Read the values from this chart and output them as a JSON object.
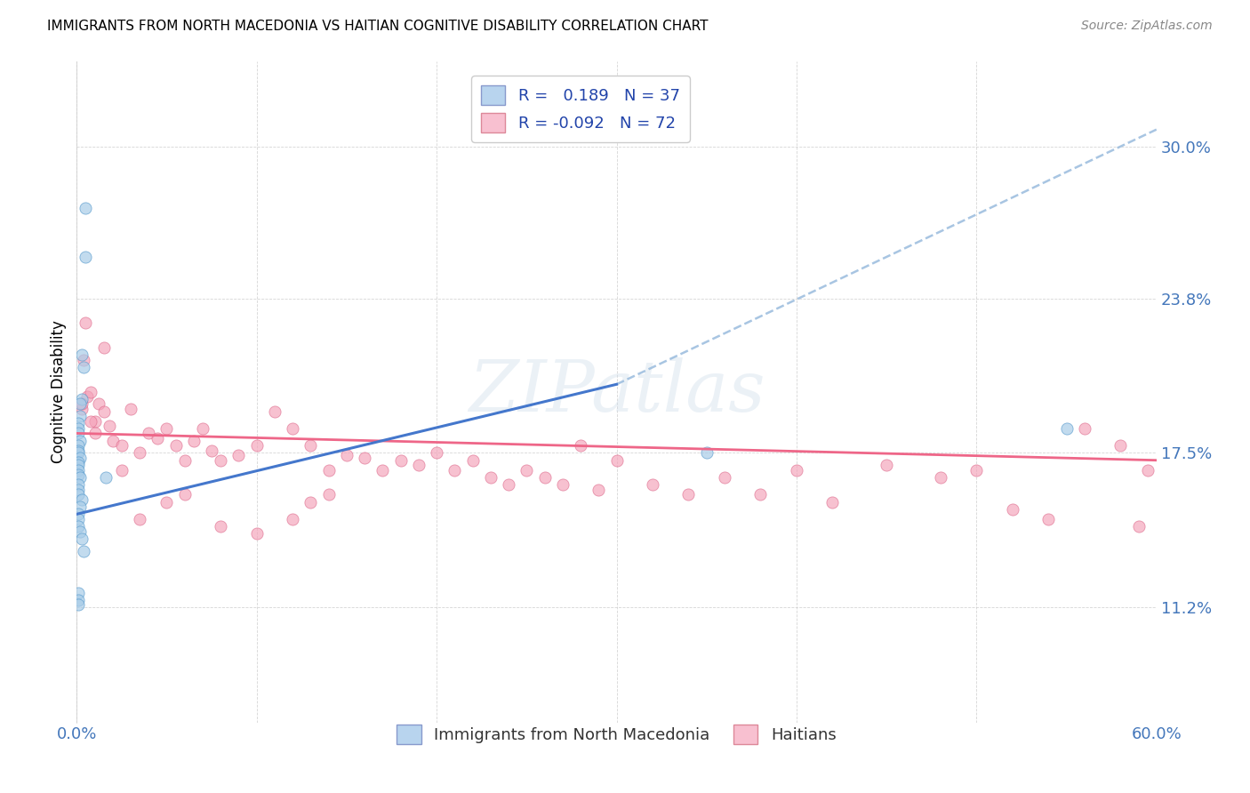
{
  "title": "IMMIGRANTS FROM NORTH MACEDONIA VS HAITIAN COGNITIVE DISABILITY CORRELATION CHART",
  "source": "Source: ZipAtlas.com",
  "ylabel": "Cognitive Disability",
  "xlim": [
    0.0,
    0.6
  ],
  "ylim": [
    0.065,
    0.335
  ],
  "yticks": [
    0.112,
    0.175,
    0.238,
    0.3
  ],
  "ytick_labels": [
    "11.2%",
    "17.5%",
    "23.8%",
    "30.0%"
  ],
  "series1_label": "Immigrants from North Macedonia",
  "series2_label": "Haitians",
  "series1_color": "#a8cce8",
  "series2_color": "#f4a0b8",
  "series1_edgecolor": "#5599cc",
  "series2_edgecolor": "#dd6688",
  "trend1_color": "#4477cc",
  "trend2_color": "#ee6688",
  "trend1_dash_color": "#99bbdd",
  "watermark": "ZIPatlas",
  "background_color": "#ffffff",
  "title_fontsize": 11,
  "axis_label_color": "#4477bb",
  "legend_label_color": "#2244aa",
  "series1_R": 0.189,
  "series1_N": 37,
  "series2_R": -0.092,
  "series2_N": 72,
  "trend1_start_x": 0.0,
  "trend1_start_y": 0.15,
  "trend1_solid_end_x": 0.3,
  "trend1_solid_end_y": 0.203,
  "trend1_dash_end_x": 0.6,
  "trend1_dash_end_y": 0.307,
  "trend2_start_x": 0.0,
  "trend2_start_y": 0.183,
  "trend2_end_x": 0.6,
  "trend2_end_y": 0.172,
  "series1_x": [
    0.005,
    0.005,
    0.003,
    0.004,
    0.003,
    0.002,
    0.002,
    0.001,
    0.001,
    0.001,
    0.002,
    0.001,
    0.001,
    0.001,
    0.002,
    0.001,
    0.001,
    0.001,
    0.001,
    0.002,
    0.001,
    0.001,
    0.001,
    0.003,
    0.002,
    0.001,
    0.001,
    0.001,
    0.002,
    0.003,
    0.004,
    0.001,
    0.016,
    0.001,
    0.001,
    0.35,
    0.55
  ],
  "series1_y": [
    0.275,
    0.255,
    0.215,
    0.21,
    0.197,
    0.195,
    0.19,
    0.187,
    0.185,
    0.183,
    0.18,
    0.178,
    0.176,
    0.175,
    0.173,
    0.171,
    0.17,
    0.168,
    0.166,
    0.165,
    0.162,
    0.16,
    0.158,
    0.156,
    0.153,
    0.15,
    0.148,
    0.145,
    0.143,
    0.14,
    0.135,
    0.118,
    0.165,
    0.115,
    0.113,
    0.175,
    0.185
  ],
  "series2_x": [
    0.005,
    0.003,
    0.004,
    0.006,
    0.008,
    0.01,
    0.01,
    0.012,
    0.015,
    0.018,
    0.02,
    0.025,
    0.03,
    0.035,
    0.04,
    0.045,
    0.05,
    0.055,
    0.06,
    0.065,
    0.07,
    0.075,
    0.08,
    0.09,
    0.1,
    0.11,
    0.12,
    0.13,
    0.14,
    0.15,
    0.16,
    0.17,
    0.18,
    0.19,
    0.2,
    0.21,
    0.22,
    0.23,
    0.24,
    0.25,
    0.26,
    0.27,
    0.28,
    0.29,
    0.3,
    0.32,
    0.34,
    0.36,
    0.38,
    0.4,
    0.42,
    0.45,
    0.48,
    0.5,
    0.52,
    0.54,
    0.56,
    0.58,
    0.59,
    0.595,
    0.003,
    0.008,
    0.015,
    0.025,
    0.035,
    0.05,
    0.06,
    0.08,
    0.1,
    0.12,
    0.13,
    0.14
  ],
  "series2_y": [
    0.228,
    0.193,
    0.213,
    0.198,
    0.2,
    0.188,
    0.183,
    0.195,
    0.192,
    0.186,
    0.18,
    0.178,
    0.193,
    0.175,
    0.183,
    0.181,
    0.185,
    0.178,
    0.172,
    0.18,
    0.185,
    0.176,
    0.172,
    0.174,
    0.178,
    0.192,
    0.185,
    0.178,
    0.168,
    0.174,
    0.173,
    0.168,
    0.172,
    0.17,
    0.175,
    0.168,
    0.172,
    0.165,
    0.162,
    0.168,
    0.165,
    0.162,
    0.178,
    0.16,
    0.172,
    0.162,
    0.158,
    0.165,
    0.158,
    0.168,
    0.155,
    0.17,
    0.165,
    0.168,
    0.152,
    0.148,
    0.185,
    0.178,
    0.145,
    0.168,
    0.195,
    0.188,
    0.218,
    0.168,
    0.148,
    0.155,
    0.158,
    0.145,
    0.142,
    0.148,
    0.155,
    0.158
  ]
}
